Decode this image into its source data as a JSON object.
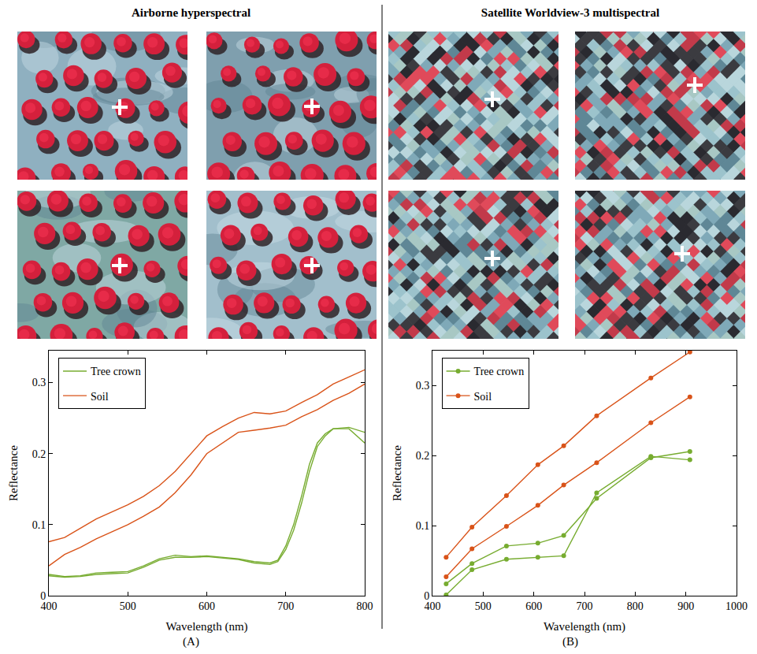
{
  "chart_data": [
    {
      "type": "line",
      "title": "Airborne hyperspectral",
      "label": "(A)",
      "x_title": "Wavelength (nm)",
      "y_title": "Reflectance",
      "xlim": [
        400,
        800
      ],
      "xticks": [
        400,
        500,
        600,
        700,
        800
      ],
      "ylim": [
        0,
        0.345
      ],
      "yticks": [
        0,
        0.1,
        0.2,
        0.3
      ],
      "legend": "upper left",
      "marker": "none",
      "line_style": "solid",
      "series": [
        {
          "name": "Tree crown",
          "color": "#77ac30",
          "x": [
            400,
            420,
            440,
            460,
            480,
            500,
            520,
            540,
            560,
            580,
            600,
            620,
            640,
            660,
            680,
            690,
            700,
            710,
            720,
            730,
            740,
            750,
            760,
            780,
            800
          ],
          "values": [
            0.03,
            0.027,
            0.028,
            0.032,
            0.033,
            0.034,
            0.042,
            0.052,
            0.057,
            0.055,
            0.056,
            0.054,
            0.052,
            0.048,
            0.046,
            0.05,
            0.07,
            0.1,
            0.14,
            0.185,
            0.215,
            0.228,
            0.235,
            0.237,
            0.23
          ]
        },
        {
          "name": "Tree crown",
          "color": "#77ac30",
          "x": [
            400,
            420,
            440,
            460,
            480,
            500,
            520,
            540,
            560,
            580,
            600,
            620,
            640,
            660,
            680,
            690,
            700,
            710,
            720,
            730,
            740,
            750,
            760,
            780,
            800
          ],
          "values": [
            0.028,
            0.026,
            0.027,
            0.03,
            0.031,
            0.032,
            0.04,
            0.05,
            0.054,
            0.054,
            0.055,
            0.053,
            0.051,
            0.046,
            0.044,
            0.048,
            0.065,
            0.092,
            0.13,
            0.175,
            0.21,
            0.225,
            0.235,
            0.235,
            0.215
          ]
        },
        {
          "name": "Soil",
          "color": "#d95319",
          "x": [
            400,
            420,
            440,
            460,
            480,
            500,
            520,
            540,
            560,
            580,
            600,
            620,
            640,
            660,
            680,
            700,
            720,
            740,
            760,
            780,
            800
          ],
          "values": [
            0.076,
            0.082,
            0.095,
            0.108,
            0.118,
            0.128,
            0.14,
            0.155,
            0.175,
            0.2,
            0.225,
            0.238,
            0.25,
            0.258,
            0.256,
            0.26,
            0.272,
            0.283,
            0.298,
            0.308,
            0.318
          ]
        },
        {
          "name": "Soil",
          "color": "#d95319",
          "x": [
            400,
            420,
            440,
            460,
            480,
            500,
            520,
            540,
            560,
            580,
            600,
            620,
            640,
            660,
            680,
            700,
            720,
            740,
            760,
            780,
            800
          ],
          "values": [
            0.042,
            0.058,
            0.068,
            0.08,
            0.09,
            0.1,
            0.112,
            0.125,
            0.145,
            0.17,
            0.2,
            0.215,
            0.23,
            0.233,
            0.236,
            0.24,
            0.252,
            0.262,
            0.275,
            0.285,
            0.298
          ]
        }
      ]
    },
    {
      "type": "line",
      "title": "Satellite Worldview-3 multispectral",
      "label": "(B)",
      "x_title": "Wavelength (nm)",
      "y_title": "Reflectance",
      "xlim": [
        400,
        1000
      ],
      "xticks": [
        400,
        500,
        600,
        700,
        800,
        900,
        1000
      ],
      "ylim": [
        0,
        0.35
      ],
      "yticks": [
        0,
        0.1,
        0.2,
        0.3
      ],
      "legend": "upper left",
      "marker": "circle",
      "line_style": "solid",
      "series": [
        {
          "name": "Tree crown",
          "color": "#77ac30",
          "x": [
            427,
            478,
            546,
            608,
            659,
            724,
            831,
            908
          ],
          "values": [
            0.017,
            0.046,
            0.071,
            0.075,
            0.086,
            0.139,
            0.197,
            0.206
          ]
        },
        {
          "name": "Tree crown",
          "color": "#77ac30",
          "x": [
            427,
            478,
            546,
            608,
            659,
            724,
            831,
            908
          ],
          "values": [
            0.001,
            0.037,
            0.052,
            0.055,
            0.057,
            0.147,
            0.199,
            0.194
          ]
        },
        {
          "name": "Soil",
          "color": "#d95319",
          "x": [
            427,
            478,
            546,
            608,
            659,
            724,
            831,
            908
          ],
          "values": [
            0.055,
            0.098,
            0.143,
            0.187,
            0.214,
            0.257,
            0.311,
            0.348
          ]
        },
        {
          "name": "Soil",
          "color": "#d95319",
          "x": [
            427,
            478,
            546,
            608,
            659,
            724,
            831,
            908
          ],
          "values": [
            0.027,
            0.067,
            0.099,
            0.129,
            0.158,
            0.19,
            0.247,
            0.284
          ]
        }
      ]
    }
  ]
}
